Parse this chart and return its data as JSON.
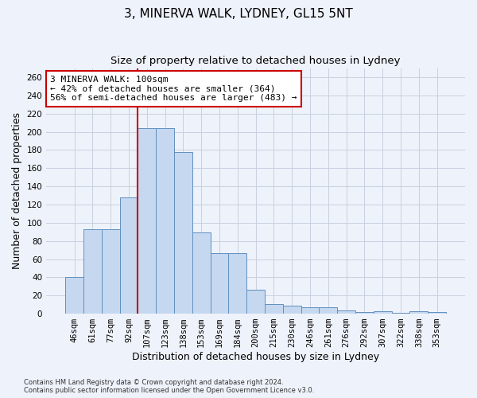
{
  "title": "3, MINERVA WALK, LYDNEY, GL15 5NT",
  "subtitle": "Size of property relative to detached houses in Lydney",
  "xlabel": "Distribution of detached houses by size in Lydney",
  "ylabel": "Number of detached properties",
  "categories": [
    "46sqm",
    "61sqm",
    "77sqm",
    "92sqm",
    "107sqm",
    "123sqm",
    "138sqm",
    "153sqm",
    "169sqm",
    "184sqm",
    "200sqm",
    "215sqm",
    "230sqm",
    "246sqm",
    "261sqm",
    "276sqm",
    "292sqm",
    "307sqm",
    "322sqm",
    "338sqm",
    "353sqm"
  ],
  "values": [
    40,
    93,
    93,
    128,
    204,
    204,
    178,
    89,
    67,
    67,
    26,
    11,
    9,
    7,
    7,
    4,
    2,
    3,
    1,
    3,
    2
  ],
  "bar_color": "#c5d8f0",
  "bar_edge_color": "#6090c0",
  "grid_color": "#c8d0e0",
  "background_color": "#eef2fa",
  "marker_line_color": "#cc0000",
  "annotation_box_color": "#ffffff",
  "annotation_box_edge": "#cc0000",
  "marker_label": "3 MINERVA WALK: 100sqm",
  "annotation_line1": "← 42% of detached houses are smaller (364)",
  "annotation_line2": "56% of semi-detached houses are larger (483) →",
  "ylim": [
    0,
    270
  ],
  "yticks": [
    0,
    20,
    40,
    60,
    80,
    100,
    120,
    140,
    160,
    180,
    200,
    220,
    240,
    260
  ],
  "footer_line1": "Contains HM Land Registry data © Crown copyright and database right 2024.",
  "footer_line2": "Contains public sector information licensed under the Open Government Licence v3.0.",
  "title_fontsize": 11,
  "subtitle_fontsize": 9.5,
  "tick_fontsize": 7.5,
  "ylabel_fontsize": 9,
  "xlabel_fontsize": 9,
  "annotation_fontsize": 8,
  "footer_fontsize": 6
}
